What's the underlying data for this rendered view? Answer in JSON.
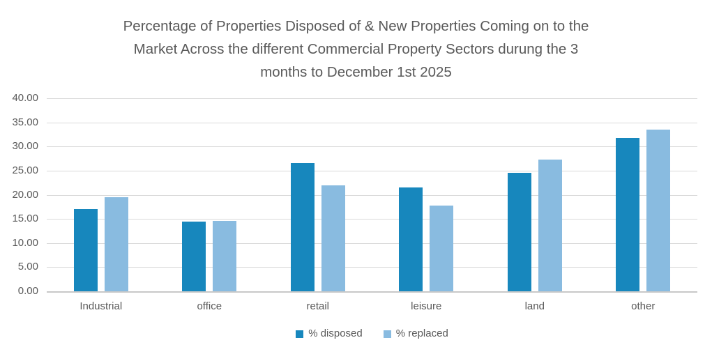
{
  "title": {
    "line1": "Percentage of Properties Disposed of & New Properties Coming on to the",
    "line2": "Market Across the different Commercial Property Sectors durung the 3",
    "line3": "months to December 1st 2025"
  },
  "chart_data": {
    "type": "bar",
    "title": "Percentage of Properties Disposed of & New Properties Coming on to the Market Across the different Commercial Property Sectors durung the 3 months to December 1st 2025",
    "categories": [
      "Industrial",
      "office",
      "retail",
      "leisure",
      "land",
      "other"
    ],
    "series": [
      {
        "name": "% disposed",
        "color": "#1787BD",
        "values": [
          17.1,
          14.4,
          26.6,
          21.5,
          24.6,
          31.8
        ]
      },
      {
        "name": "% replaced",
        "color": "#89BBE0",
        "values": [
          19.5,
          14.6,
          21.9,
          17.8,
          27.3,
          33.5
        ]
      }
    ],
    "xlabel": "",
    "ylabel": "",
    "ylim": [
      0,
      40
    ],
    "y_tick_step": 5,
    "y_tick_labels": [
      "0.00",
      "5.00",
      "10.00",
      "15.00",
      "20.00",
      "25.00",
      "30.00",
      "35.00",
      "40.00"
    ],
    "grid": true,
    "legend_position": "bottom"
  },
  "colors": {
    "gridline": "#d9d9d9",
    "axis_line": "#c8c8c8",
    "text": "#595959"
  }
}
